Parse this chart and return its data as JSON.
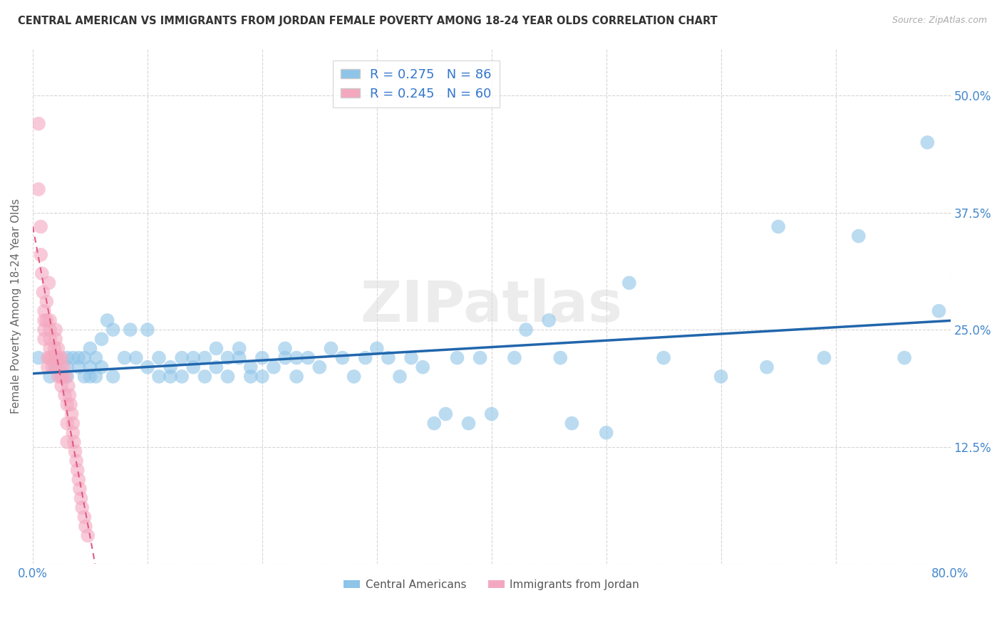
{
  "title": "CENTRAL AMERICAN VS IMMIGRANTS FROM JORDAN FEMALE POVERTY AMONG 18-24 YEAR OLDS CORRELATION CHART",
  "source": "Source: ZipAtlas.com",
  "ylabel": "Female Poverty Among 18-24 Year Olds",
  "xlim": [
    0.0,
    0.8
  ],
  "ylim": [
    0.0,
    0.55
  ],
  "xticks": [
    0.0,
    0.1,
    0.2,
    0.3,
    0.4,
    0.5,
    0.6,
    0.7,
    0.8
  ],
  "xticklabels_show": [
    "0.0%",
    "",
    "",
    "",
    "",
    "",
    "",
    "",
    "80.0%"
  ],
  "yticks": [
    0.0,
    0.125,
    0.25,
    0.375,
    0.5
  ],
  "yticklabels_right": [
    "",
    "12.5%",
    "25.0%",
    "37.5%",
    "50.0%"
  ],
  "blue_R": 0.275,
  "blue_N": 86,
  "pink_R": 0.245,
  "pink_N": 60,
  "blue_color": "#8ec4e8",
  "pink_color": "#f4a8c0",
  "trendline_blue_color": "#2166ac",
  "trendline_pink_color": "#e05a80",
  "watermark": "ZIPatlas",
  "blue_scatter_x": [
    0.005,
    0.015,
    0.02,
    0.02,
    0.025,
    0.03,
    0.03,
    0.03,
    0.035,
    0.04,
    0.04,
    0.045,
    0.045,
    0.05,
    0.05,
    0.05,
    0.055,
    0.055,
    0.06,
    0.06,
    0.065,
    0.07,
    0.07,
    0.08,
    0.085,
    0.09,
    0.1,
    0.1,
    0.11,
    0.11,
    0.12,
    0.12,
    0.13,
    0.13,
    0.14,
    0.14,
    0.15,
    0.15,
    0.16,
    0.16,
    0.17,
    0.17,
    0.18,
    0.18,
    0.19,
    0.19,
    0.2,
    0.2,
    0.21,
    0.22,
    0.22,
    0.23,
    0.23,
    0.24,
    0.25,
    0.26,
    0.27,
    0.28,
    0.29,
    0.3,
    0.31,
    0.32,
    0.33,
    0.34,
    0.35,
    0.36,
    0.37,
    0.38,
    0.39,
    0.4,
    0.42,
    0.43,
    0.45,
    0.46,
    0.47,
    0.5,
    0.52,
    0.55,
    0.6,
    0.64,
    0.65,
    0.69,
    0.72,
    0.76,
    0.78,
    0.79
  ],
  "blue_scatter_y": [
    0.22,
    0.2,
    0.21,
    0.22,
    0.2,
    0.21,
    0.22,
    0.2,
    0.22,
    0.21,
    0.22,
    0.2,
    0.22,
    0.21,
    0.2,
    0.23,
    0.22,
    0.2,
    0.24,
    0.21,
    0.26,
    0.25,
    0.2,
    0.22,
    0.25,
    0.22,
    0.25,
    0.21,
    0.2,
    0.22,
    0.21,
    0.2,
    0.22,
    0.2,
    0.21,
    0.22,
    0.22,
    0.2,
    0.23,
    0.21,
    0.22,
    0.2,
    0.22,
    0.23,
    0.21,
    0.2,
    0.22,
    0.2,
    0.21,
    0.23,
    0.22,
    0.22,
    0.2,
    0.22,
    0.21,
    0.23,
    0.22,
    0.2,
    0.22,
    0.23,
    0.22,
    0.2,
    0.22,
    0.21,
    0.15,
    0.16,
    0.22,
    0.15,
    0.22,
    0.16,
    0.22,
    0.25,
    0.26,
    0.22,
    0.15,
    0.14,
    0.3,
    0.22,
    0.2,
    0.21,
    0.36,
    0.22,
    0.35,
    0.22,
    0.45,
    0.27
  ],
  "pink_scatter_x": [
    0.005,
    0.005,
    0.007,
    0.007,
    0.008,
    0.009,
    0.01,
    0.01,
    0.01,
    0.01,
    0.012,
    0.012,
    0.013,
    0.013,
    0.014,
    0.015,
    0.015,
    0.015,
    0.015,
    0.015,
    0.016,
    0.017,
    0.018,
    0.019,
    0.02,
    0.02,
    0.02,
    0.02,
    0.021,
    0.022,
    0.022,
    0.023,
    0.024,
    0.025,
    0.025,
    0.025,
    0.026,
    0.027,
    0.028,
    0.029,
    0.03,
    0.03,
    0.03,
    0.031,
    0.032,
    0.033,
    0.034,
    0.035,
    0.035,
    0.036,
    0.037,
    0.038,
    0.039,
    0.04,
    0.041,
    0.042,
    0.043,
    0.045,
    0.046,
    0.048
  ],
  "pink_scatter_y": [
    0.47,
    0.4,
    0.36,
    0.33,
    0.31,
    0.29,
    0.27,
    0.26,
    0.25,
    0.24,
    0.28,
    0.26,
    0.22,
    0.21,
    0.3,
    0.26,
    0.25,
    0.24,
    0.23,
    0.22,
    0.22,
    0.21,
    0.22,
    0.23,
    0.25,
    0.24,
    0.22,
    0.21,
    0.22,
    0.23,
    0.2,
    0.22,
    0.21,
    0.2,
    0.22,
    0.19,
    0.2,
    0.21,
    0.18,
    0.2,
    0.17,
    0.15,
    0.13,
    0.19,
    0.18,
    0.17,
    0.16,
    0.15,
    0.14,
    0.13,
    0.12,
    0.11,
    0.1,
    0.09,
    0.08,
    0.07,
    0.06,
    0.05,
    0.04,
    0.03
  ]
}
